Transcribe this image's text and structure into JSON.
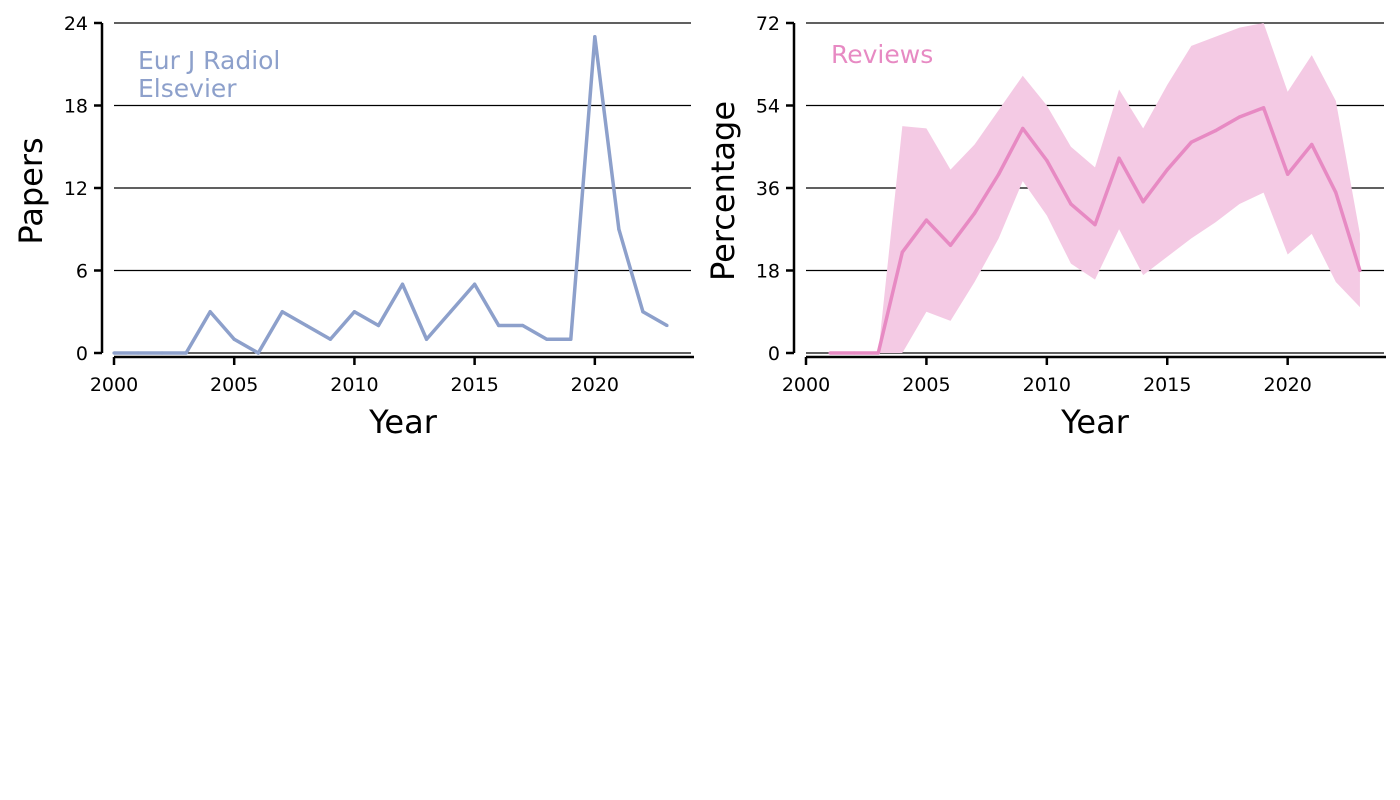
{
  "chart_data": [
    {
      "type": "line",
      "xlabel": "Year",
      "ylabel": "Papers",
      "xlim": [
        2000,
        24
      ],
      "ylim": [
        0,
        24
      ],
      "xticks": [
        2000,
        2005,
        2010,
        2015,
        2020
      ],
      "yticks": [
        0,
        6,
        12,
        18,
        24
      ],
      "grid": "y",
      "annotations": [
        "Eur J Radiol",
        "Elsevier"
      ],
      "color": "#8da0cb",
      "x": [
        2000,
        2001,
        2002,
        2003,
        2004,
        2005,
        2006,
        2007,
        2008,
        2009,
        2010,
        2011,
        2012,
        2013,
        2014,
        2015,
        2016,
        2017,
        2018,
        2019,
        2020,
        2021,
        2022,
        2023
      ],
      "values": [
        0,
        0,
        0,
        0,
        3,
        1,
        0,
        3,
        2,
        1,
        3,
        2,
        5,
        1,
        3,
        5,
        2,
        2,
        1,
        1,
        23,
        9,
        3,
        2
      ]
    },
    {
      "type": "area",
      "xlabel": "Year",
      "ylabel": "Percentage",
      "xlim": [
        2000,
        2024
      ],
      "ylim": [
        0,
        72
      ],
      "xticks": [
        2000,
        2005,
        2010,
        2015,
        2020
      ],
      "yticks": [
        0,
        18,
        36,
        54,
        72
      ],
      "grid": "y",
      "annotations": [
        "Reviews"
      ],
      "color": "#e78ac3",
      "band_color": "#f4cae4",
      "x": [
        2001,
        2002,
        2003,
        2004,
        2005,
        2006,
        2007,
        2008,
        2009,
        2010,
        2011,
        2012,
        2013,
        2014,
        2015,
        2016,
        2017,
        2018,
        2019,
        2020,
        2021,
        2022,
        2023
      ],
      "values": [
        0,
        0,
        0,
        22,
        29,
        23.5,
        30.5,
        39,
        49,
        42,
        32.5,
        28,
        42.5,
        33,
        40,
        46,
        48.5,
        51.5,
        53.5,
        39,
        45.5,
        35,
        18
      ],
      "upper": [
        0,
        0,
        0,
        49.5,
        49,
        40,
        45.5,
        53,
        60.5,
        54,
        45,
        40.5,
        57.5,
        49,
        58.5,
        67,
        69,
        71,
        72,
        57,
        65,
        55,
        26
      ],
      "lower": [
        0,
        0,
        0,
        0,
        9,
        7,
        15.5,
        25,
        37.5,
        30,
        19.5,
        16,
        27,
        17,
        21,
        25,
        28.5,
        32.5,
        35,
        21.5,
        26,
        15.5,
        10
      ]
    }
  ]
}
